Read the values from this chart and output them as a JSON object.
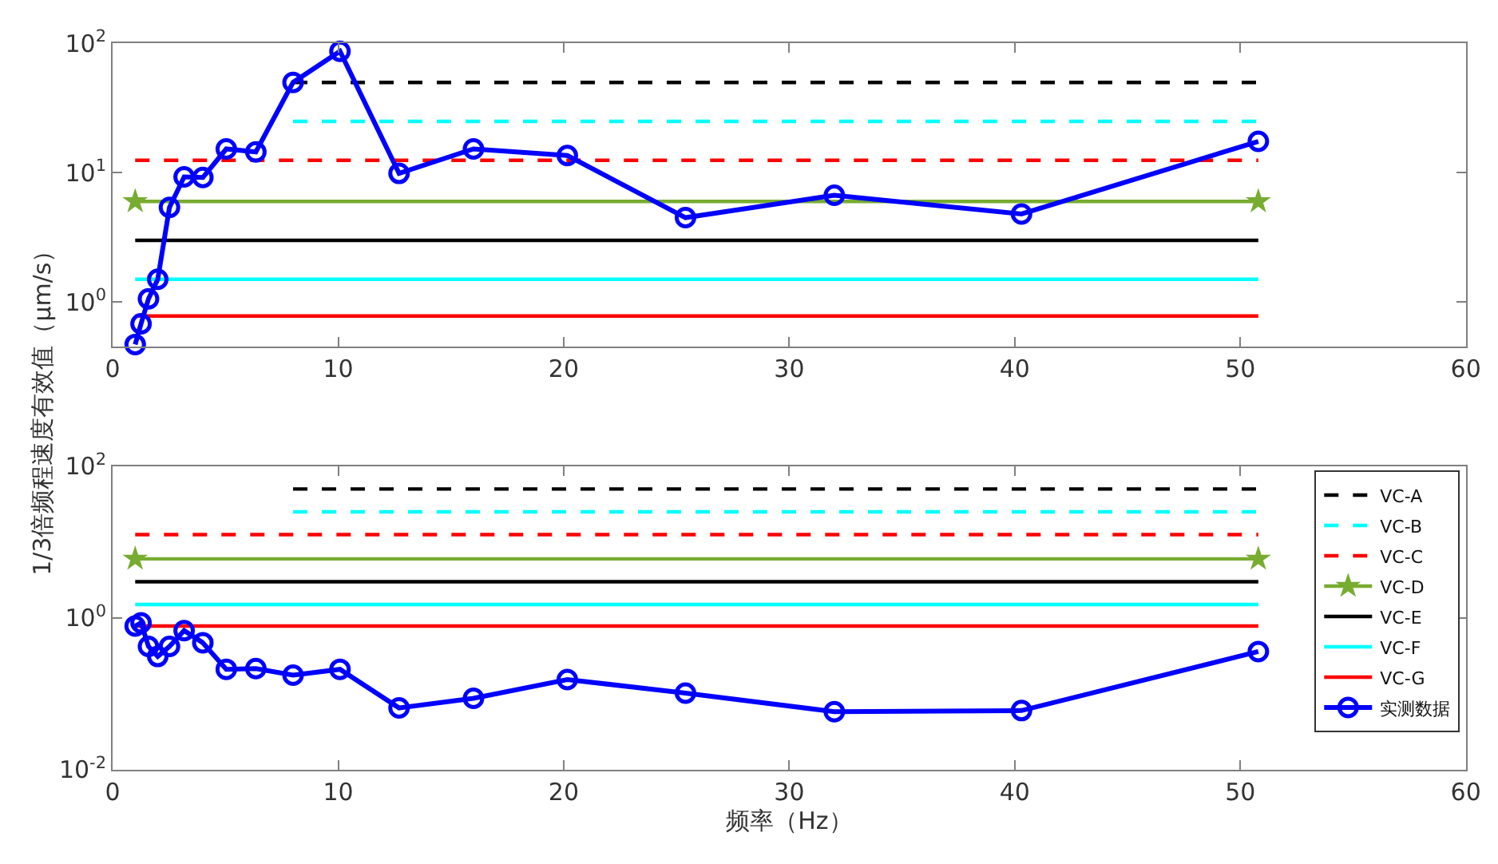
{
  "chart_data": [
    {
      "type": "line",
      "ylabel": "1/3倍频程速度有效值（μm/s）",
      "log": "y",
      "legend": false,
      "xlim": [
        0,
        60
      ],
      "xticks": [
        0,
        10,
        20,
        30,
        40,
        50,
        60
      ],
      "ylim": [
        0.45,
        100
      ],
      "yticks": [
        {
          "value": 1,
          "label": "10$^{0}$"
        },
        {
          "value": 10,
          "label": "10$^{1}$"
        },
        {
          "value": 100,
          "label": "10$^{2}$"
        }
      ],
      "series": [
        {
          "color": "#000000",
          "line_style": "dashed",
          "marker": "none",
          "x": [
            8,
            50.8
          ],
          "values": [
            50,
            50
          ]
        },
        {
          "color": "#00ffff",
          "line_style": "dashed",
          "marker": "none",
          "x": [
            8,
            50.8
          ],
          "values": [
            25,
            25
          ]
        },
        {
          "color": "#ff0000",
          "line_style": "dashed",
          "marker": "none",
          "x": [
            1,
            50.8
          ],
          "values": [
            12.5,
            12.5
          ]
        },
        {
          "color": "#77ac30",
          "line_style": "solid",
          "marker": "star",
          "x": [
            1,
            50.8
          ],
          "values": [
            6,
            6
          ]
        },
        {
          "color": "#000000",
          "line_style": "solid",
          "marker": "none",
          "x": [
            1,
            50.8
          ],
          "values": [
            3,
            3
          ]
        },
        {
          "color": "#00ffff",
          "line_style": "solid",
          "marker": "none",
          "x": [
            1,
            50.8
          ],
          "values": [
            1.5,
            1.5
          ]
        },
        {
          "color": "#ff0000",
          "line_style": "solid",
          "marker": "none",
          "x": [
            1,
            50.8
          ],
          "values": [
            0.78,
            0.78
          ]
        },
        {
          "color": "#0000ff",
          "line_style": "solid",
          "marker": "circle",
          "x": [
            1,
            1.26,
            1.59,
            2,
            2.52,
            3.17,
            4,
            5.04,
            6.35,
            8,
            10.08,
            12.7,
            16,
            20.16,
            25.4,
            32,
            40.3,
            50.8
          ],
          "values": [
            0.47,
            0.68,
            1.06,
            1.5,
            5.4,
            9.3,
            9.2,
            15.3,
            14.5,
            50,
            87,
            9.9,
            15.3,
            13.6,
            4.5,
            6.7,
            4.8,
            17.5
          ]
        }
      ]
    },
    {
      "type": "line",
      "xlabel": "频率（Hz）",
      "log": "y",
      "legend": "top right",
      "xlim": [
        0,
        60
      ],
      "xticks": [
        0,
        10,
        20,
        30,
        40,
        50,
        60
      ],
      "ylim": [
        0.01,
        100
      ],
      "yticks": [
        {
          "value": 0.01,
          "label": "10$^{-2}$"
        },
        {
          "value": 1,
          "label": "10$^{0}$"
        },
        {
          "value": 100,
          "label": "10$^{2}$"
        }
      ],
      "series": [
        {
          "name": "VC-A",
          "color": "#000000",
          "line_style": "dashed",
          "marker": "none",
          "x": [
            8,
            50.8
          ],
          "values": [
            50,
            50
          ]
        },
        {
          "name": "VC-B",
          "color": "#00ffff",
          "line_style": "dashed",
          "marker": "none",
          "x": [
            8,
            50.8
          ],
          "values": [
            25,
            25
          ]
        },
        {
          "name": "VC-C",
          "color": "#ff0000",
          "line_style": "dashed",
          "marker": "none",
          "x": [
            1,
            50.8
          ],
          "values": [
            12.5,
            12.5
          ]
        },
        {
          "name": "VC-D",
          "color": "#77ac30",
          "line_style": "solid",
          "marker": "star",
          "x": [
            1,
            50.8
          ],
          "values": [
            6,
            6
          ]
        },
        {
          "name": "VC-E",
          "color": "#000000",
          "line_style": "solid",
          "marker": "none",
          "x": [
            1,
            50.8
          ],
          "values": [
            3,
            3
          ]
        },
        {
          "name": "VC-F",
          "color": "#00ffff",
          "line_style": "solid",
          "marker": "none",
          "x": [
            1,
            50.8
          ],
          "values": [
            1.5,
            1.5
          ]
        },
        {
          "name": "VC-G",
          "color": "#ff0000",
          "line_style": "solid",
          "marker": "none",
          "x": [
            1,
            50.8
          ],
          "values": [
            0.78,
            0.78
          ]
        },
        {
          "name": "实测数据",
          "color": "#0000ff",
          "line_style": "solid",
          "marker": "circle",
          "x": [
            1,
            1.26,
            1.59,
            2,
            2.52,
            3.17,
            4,
            5.04,
            6.35,
            8,
            10.08,
            12.7,
            16,
            20.16,
            25.4,
            32,
            40.3,
            50.8
          ],
          "values": [
            0.78,
            0.86,
            0.42,
            0.31,
            0.42,
            0.68,
            0.47,
            0.21,
            0.215,
            0.176,
            0.21,
            0.065,
            0.087,
            0.154,
            0.102,
            0.058,
            0.06,
            0.36
          ]
        }
      ]
    }
  ]
}
